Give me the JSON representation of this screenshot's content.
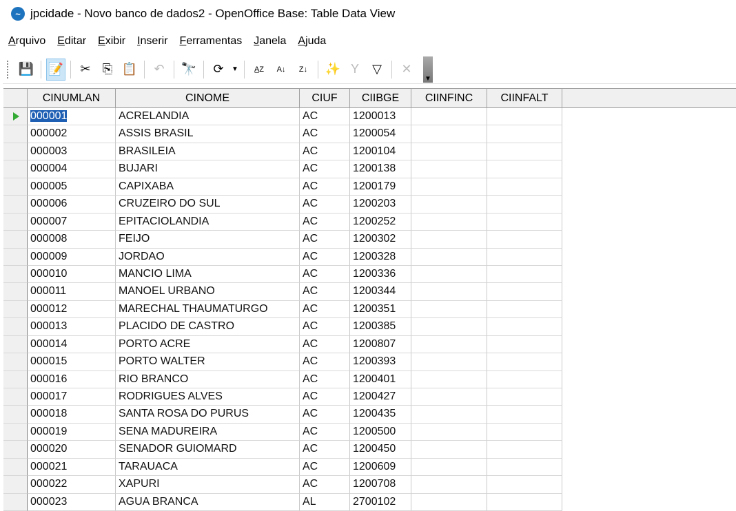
{
  "window": {
    "title": "jpcidade - Novo banco de dados2 - OpenOffice Base: Table Data View"
  },
  "menu": [
    "Arquivo",
    "Editar",
    "Exibir",
    "Inserir",
    "Ferramentas",
    "Janela",
    "Ajuda"
  ],
  "toolbar": [
    "save-icon",
    "edit-data-icon",
    "cut-icon",
    "copy-icon",
    "paste-icon",
    "undo-icon",
    "find-icon",
    "refresh-icon",
    "sort-ascending-icon",
    "sort-ascending-arrow-icon",
    "sort-descending-icon",
    "autofilter-icon",
    "apply-filter-icon",
    "standard-filter-icon",
    "remove-filter-icon"
  ],
  "table": {
    "columns": [
      "CINUMLAN",
      "CINOME",
      "CIUF",
      "CIIBGE",
      "CIINFINC",
      "CIINFALT"
    ],
    "rows": [
      [
        "000001",
        "ACRELANDIA",
        "AC",
        "1200013",
        "",
        ""
      ],
      [
        "000002",
        "ASSIS BRASIL",
        "AC",
        "1200054",
        "",
        ""
      ],
      [
        "000003",
        "BRASILEIA",
        "AC",
        "1200104",
        "",
        ""
      ],
      [
        "000004",
        "BUJARI",
        "AC",
        "1200138",
        "",
        ""
      ],
      [
        "000005",
        "CAPIXABA",
        "AC",
        "1200179",
        "",
        ""
      ],
      [
        "000006",
        "CRUZEIRO DO SUL",
        "AC",
        "1200203",
        "",
        ""
      ],
      [
        "000007",
        "EPITACIOLANDIA",
        "AC",
        "1200252",
        "",
        ""
      ],
      [
        "000008",
        "FEIJO",
        "AC",
        "1200302",
        "",
        ""
      ],
      [
        "000009",
        "JORDAO",
        "AC",
        "1200328",
        "",
        ""
      ],
      [
        "000010",
        "MANCIO LIMA",
        "AC",
        "1200336",
        "",
        ""
      ],
      [
        "000011",
        "MANOEL URBANO",
        "AC",
        "1200344",
        "",
        ""
      ],
      [
        "000012",
        "MARECHAL THAUMATURGO",
        "AC",
        "1200351",
        "",
        ""
      ],
      [
        "000013",
        "PLACIDO DE CASTRO",
        "AC",
        "1200385",
        "",
        ""
      ],
      [
        "000014",
        "PORTO ACRE",
        "AC",
        "1200807",
        "",
        ""
      ],
      [
        "000015",
        "PORTO WALTER",
        "AC",
        "1200393",
        "",
        ""
      ],
      [
        "000016",
        "RIO BRANCO",
        "AC",
        "1200401",
        "",
        ""
      ],
      [
        "000017",
        "RODRIGUES ALVES",
        "AC",
        "1200427",
        "",
        ""
      ],
      [
        "000018",
        "SANTA ROSA DO PURUS",
        "AC",
        "1200435",
        "",
        ""
      ],
      [
        "000019",
        "SENA MADUREIRA",
        "AC",
        "1200500",
        "",
        ""
      ],
      [
        "000020",
        "SENADOR GUIOMARD",
        "AC",
        "1200450",
        "",
        ""
      ],
      [
        "000021",
        "TARAUACA",
        "AC",
        "1200609",
        "",
        ""
      ],
      [
        "000022",
        "XAPURI",
        "AC",
        "1200708",
        "",
        ""
      ],
      [
        "000023",
        "AGUA BRANCA",
        "AL",
        "2700102",
        "",
        ""
      ]
    ]
  },
  "colors": {
    "selection": "#1e5fb4",
    "current_row_marker": "#33aa33"
  }
}
